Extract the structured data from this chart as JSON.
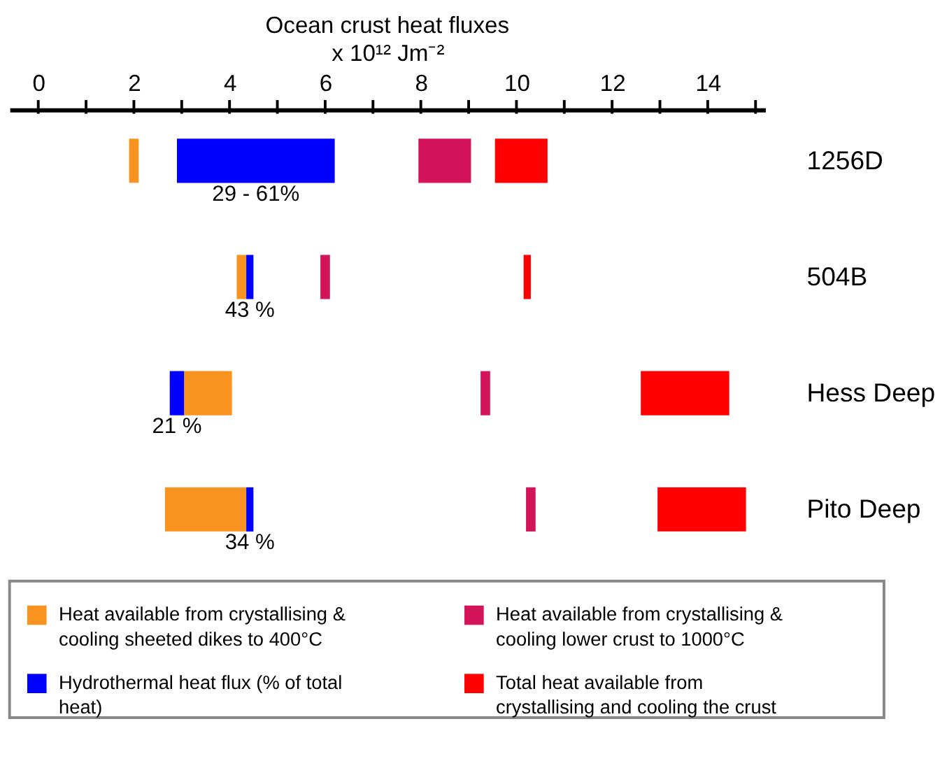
{
  "chart_data": {
    "type": "bar",
    "orientation": "horizontal",
    "title": "Ocean crust heat fluxes",
    "xlabel": "x 10¹² Jm⁻²",
    "categories": [
      "1256D",
      "504B",
      "Hess Deep",
      "Pito Deep"
    ],
    "xlim": [
      -0.6,
      15.2
    ],
    "xticks": [
      0,
      {
        "value": 1,
        "label": null
      },
      2,
      {
        "value": 3,
        "label": null
      },
      4,
      {
        "value": 5,
        "label": null
      },
      6,
      {
        "value": 7,
        "label": null
      },
      8,
      {
        "value": 9,
        "label": null
      },
      10,
      {
        "value": 11,
        "label": null
      },
      12,
      {
        "value": 13,
        "label": null
      },
      14,
      {
        "value": 15,
        "label": null
      }
    ],
    "series": [
      {
        "name": "Heat available from crystallising & cooling sheeted dikes to 400°C",
        "color": "#f7931e",
        "base": [
          1.9,
          4.15,
          3.05,
          2.65
        ],
        "values": [
          0.2,
          0.2,
          1.0,
          1.7
        ]
      },
      {
        "name": "Hydrothermal heat flux (% of total heat)",
        "color": "#0000ff",
        "base": [
          2.9,
          4.35,
          2.75,
          4.35
        ],
        "values": [
          3.3,
          0.15,
          0.3,
          0.15
        ]
      },
      {
        "name": "Heat available from crystallising & cooling lower crust to 1000°C",
        "color": "#d4145a",
        "base": [
          7.95,
          5.9,
          9.25,
          10.2
        ],
        "values": [
          1.1,
          0.2,
          0.2,
          0.2
        ]
      },
      {
        "name": "Total heat available from crystallising and cooling the crust",
        "color": "#ff0000",
        "base": [
          9.55,
          10.15,
          12.6,
          12.95
        ],
        "values": [
          1.1,
          0.15,
          1.85,
          1.85
        ]
      }
    ],
    "annotations": [
      "29 - 61%",
      "43 %",
      "21 %",
      "34 %"
    ],
    "grid": false,
    "legend": "bottom"
  }
}
